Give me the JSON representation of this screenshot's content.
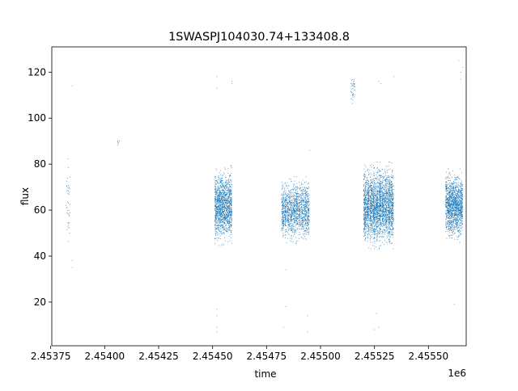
{
  "chart_data": {
    "type": "scatter",
    "title": "1SWASPJ104030.74+133408.8",
    "xlabel": "time",
    "ylabel": "flux",
    "x_offset_label": "1e6",
    "xlim": [
      2.453755,
      2.455675
    ],
    "ylim": [
      1.0,
      131.0
    ],
    "x_ticks": [
      2.45375,
      2.454,
      2.45425,
      2.4545,
      2.45475,
      2.455,
      2.45525,
      2.4555
    ],
    "x_tick_labels": [
      "2.45375",
      "2.45400",
      "2.45425",
      "2.45450",
      "2.45475",
      "2.45500",
      "2.45525",
      "2.45550"
    ],
    "y_ticks": [
      20,
      40,
      60,
      80,
      100,
      120
    ],
    "y_tick_labels": [
      "20",
      "40",
      "60",
      "80",
      "100",
      "120"
    ],
    "grid": false,
    "legend": "none",
    "marker_color": "#1f77b4",
    "observing_seasons": [
      {
        "t_start": 2.45382,
        "t_end": 2.45384,
        "flux_median": 62,
        "flux_spread": 14,
        "density": "sparse"
      },
      {
        "t_start": 2.45406,
        "t_end": 2.45407,
        "flux_median": 90,
        "flux_spread": 2,
        "density": "very sparse"
      },
      {
        "t_start": 2.45451,
        "t_end": 2.45459,
        "flux_median": 62,
        "flux_spread": 12,
        "density": "dense"
      },
      {
        "t_start": 2.45482,
        "t_end": 2.45495,
        "flux_median": 60,
        "flux_spread": 10,
        "density": "dense"
      },
      {
        "t_start": 2.45514,
        "t_end": 2.45516,
        "flux_median": 113,
        "flux_spread": 5,
        "density": "sparse"
      },
      {
        "t_start": 2.4552,
        "t_end": 2.45534,
        "flux_median": 62,
        "flux_spread": 13,
        "density": "very dense"
      },
      {
        "t_start": 2.45558,
        "t_end": 2.45566,
        "flux_median": 62,
        "flux_spread": 11,
        "density": "dense"
      }
    ],
    "outliers": [
      {
        "x": 2.45385,
        "y": 114
      },
      {
        "x": 2.45385,
        "y": 35
      },
      {
        "x": 2.45385,
        "y": 38
      },
      {
        "x": 2.45452,
        "y": 118
      },
      {
        "x": 2.45452,
        "y": 113
      },
      {
        "x": 2.45452,
        "y": 17
      },
      {
        "x": 2.45452,
        "y": 7
      },
      {
        "x": 2.45452,
        "y": 9
      },
      {
        "x": 2.45452,
        "y": 14
      },
      {
        "x": 2.45459,
        "y": 116
      },
      {
        "x": 2.45459,
        "y": 115
      },
      {
        "x": 2.45483,
        "y": 9
      },
      {
        "x": 2.45484,
        "y": 18
      },
      {
        "x": 2.45484,
        "y": 34
      },
      {
        "x": 2.45494,
        "y": 14
      },
      {
        "x": 2.45494,
        "y": 7
      },
      {
        "x": 2.45495,
        "y": 86
      },
      {
        "x": 2.45527,
        "y": 116
      },
      {
        "x": 2.45528,
        "y": 115
      },
      {
        "x": 2.45534,
        "y": 118
      },
      {
        "x": 2.45525,
        "y": 8
      },
      {
        "x": 2.45527,
        "y": 9
      },
      {
        "x": 2.45526,
        "y": 15
      },
      {
        "x": 2.45562,
        "y": 19
      },
      {
        "x": 2.45564,
        "y": 125
      },
      {
        "x": 2.45565,
        "y": 120
      },
      {
        "x": 2.45565,
        "y": 117
      },
      {
        "x": 2.45566,
        "y": 122
      }
    ]
  }
}
